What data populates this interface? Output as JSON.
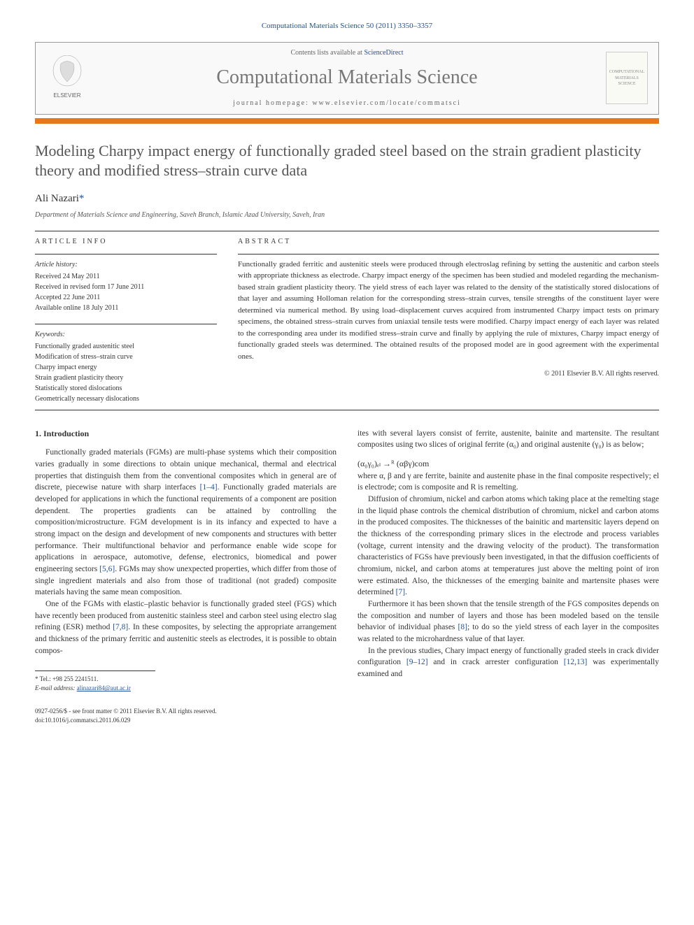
{
  "header": {
    "citation": "Computational Materials Science 50 (2011) 3350–3357",
    "contents_prefix": "Contents lists available at ",
    "contents_link": "ScienceDirect",
    "journal_title": "Computational Materials Science",
    "homepage_prefix": "journal homepage: ",
    "homepage_url": "www.elsevier.com/locate/commatsci",
    "publisher_logo_label": "ELSEVIER",
    "cover_label": "COMPUTATIONAL MATERIALS SCIENCE"
  },
  "article": {
    "title": "Modeling Charpy impact energy of functionally graded steel based on the strain gradient plasticity theory and modified stress–strain curve data",
    "author": "Ali Nazari",
    "author_mark": "*",
    "affiliation": "Department of Materials Science and Engineering, Saveh Branch, Islamic Azad University, Saveh, Iran"
  },
  "info": {
    "heading": "ARTICLE INFO",
    "history_label": "Article history:",
    "received": "Received 24 May 2011",
    "revised": "Received in revised form 17 June 2011",
    "accepted": "Accepted 22 June 2011",
    "online": "Available online 18 July 2011",
    "keywords_label": "Keywords:",
    "keywords": [
      "Functionally graded austenitic steel",
      "Modification of stress–strain curve",
      "Charpy impact energy",
      "Strain gradient plasticity theory",
      "Statistically stored dislocations",
      "Geometrically necessary dislocations"
    ]
  },
  "abstract": {
    "heading": "ABSTRACT",
    "text": "Functionally graded ferritic and austenitic steels were produced through electroslag refining by setting the austenitic and carbon steels with appropriate thickness as electrode. Charpy impact energy of the specimen has been studied and modeled regarding the mechanism-based strain gradient plasticity theory. The yield stress of each layer was related to the density of the statistically stored dislocations of that layer and assuming Holloman relation for the corresponding stress–strain curves, tensile strengths of the constituent layer were determined via numerical method. By using load–displacement curves acquired from instrumented Charpy impact tests on primary specimens, the obtained stress–strain curves from uniaxial tensile tests were modified. Charpy impact energy of each layer was related to the corresponding area under its modified stress–strain curve and finally by applying the rule of mixtures, Charpy impact energy of functionally graded steels was determined. The obtained results of the proposed model are in good agreement with the experimental ones.",
    "copyright": "© 2011 Elsevier B.V. All rights reserved."
  },
  "body": {
    "section_num": "1.",
    "section_title": "Introduction",
    "col1_p1": "Functionally graded materials (FGMs) are multi-phase systems which their composition varies gradually in some directions to obtain unique mechanical, thermal and electrical properties that distinguish them from the conventional composites which in general are of discrete, piecewise nature with sharp interfaces [1–4]. Functionally graded materials are developed for applications in which the functional requirements of a component are position dependent. The properties gradients can be attained by controlling the composition/microstructure. FGM development is in its infancy and expected to have a strong impact on the design and development of new components and structures with better performance. Their multifunctional behavior and performance enable wide scope for applications in aerospace, automotive, defense, electronics, biomedical and power engineering sectors [5,6]. FGMs may show unexpected properties, which differ from those of single ingredient materials and also from those of traditional (not graded) composite materials having the same mean composition.",
    "col1_p2": "One of the FGMs with elastic–plastic behavior is functionally graded steel (FGS) which have recently been produced from austenitic stainless steel and carbon steel using electro slag refining (ESR) method [7,8]. In these composites, by selecting the appropriate arrangement and thickness of the primary ferritic and austenitic steels as electrodes, it is possible to obtain compos-",
    "col2_p1_pre": "ites with several layers consist of ferrite, austenite, bainite and martensite. The resultant composites using two slices of original ferrite (α₀) and original austenite (γ₀) is as below;",
    "equation": "(α₀γ₀)ₑₗ →ᴿ (αβγ)com",
    "col2_p1_post": "where α, β and γ are ferrite, bainite and austenite phase in the final composite respectively; el is electrode; com is composite and R is remelting.",
    "col2_p2": "Diffusion of chromium, nickel and carbon atoms which taking place at the remelting stage in the liquid phase controls the chemical distribution of chromium, nickel and carbon atoms in the produced composites. The thicknesses of the bainitic and martensitic layers depend on the thickness of the corresponding primary slices in the electrode and process variables (voltage, current intensity and the drawing velocity of the product). The transformation characteristics of FGSs have previously been investigated, in that the diffusion coefficients of chromium, nickel, and carbon atoms at temperatures just above the melting point of iron were estimated. Also, the thicknesses of the emerging bainite and martensite phases were determined [7].",
    "col2_p3": "Furthermore it has been shown that the tensile strength of the FGS composites depends on the composition and number of layers and those has been modeled based on the tensile behavior of individual phases [8]; to do so the yield stress of each layer in the composites was related to the microhardness value of that layer.",
    "col2_p4": "In the previous studies, Chary impact energy of functionally graded steels in crack divider configuration [9–12] and in crack arrester configuration [12,13] was experimentally examined and"
  },
  "footnote": {
    "tel_label": "* Tel.: ",
    "tel": "+98 255 2241511.",
    "email_label": "E-mail address: ",
    "email": "alinazari84@aut.ac.ir"
  },
  "footer": {
    "line1": "0927-0256/$ - see front matter © 2011 Elsevier B.V. All rights reserved.",
    "line2": "doi:10.1016/j.commatsci.2011.06.029"
  },
  "colors": {
    "accent_orange": "#e67817",
    "link_blue": "#2050a0",
    "gray_title": "#777777"
  }
}
